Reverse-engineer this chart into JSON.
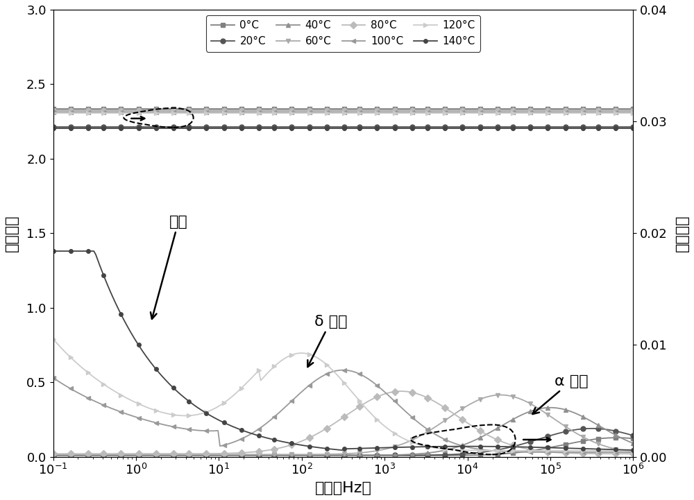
{
  "title": "",
  "xlabel": "频率（Hz）",
  "ylabel_left": "介电常数",
  "ylabel_right": "介电损耗",
  "ylim_left": [
    0,
    3.0
  ],
  "ylim_right": [
    0,
    0.04
  ],
  "temperatures": [
    "0°C",
    "20°C",
    "40°C",
    "60°C",
    "80°C",
    "100°C",
    "120°C",
    "140°C"
  ],
  "colors": [
    "#808080",
    "#555555",
    "#909090",
    "#aaaaaa",
    "#bbbbbb",
    "#999999",
    "#cccccc",
    "#444444"
  ],
  "markers": [
    "s",
    "o",
    "^",
    "v",
    "D",
    "<",
    ">",
    "o"
  ],
  "marker_sizes": [
    5,
    5,
    5,
    5,
    5,
    5,
    5,
    4
  ],
  "background_color": "#ffffff",
  "legend_fontsize": 11,
  "axis_fontsize": 16,
  "tick_fontsize": 13
}
